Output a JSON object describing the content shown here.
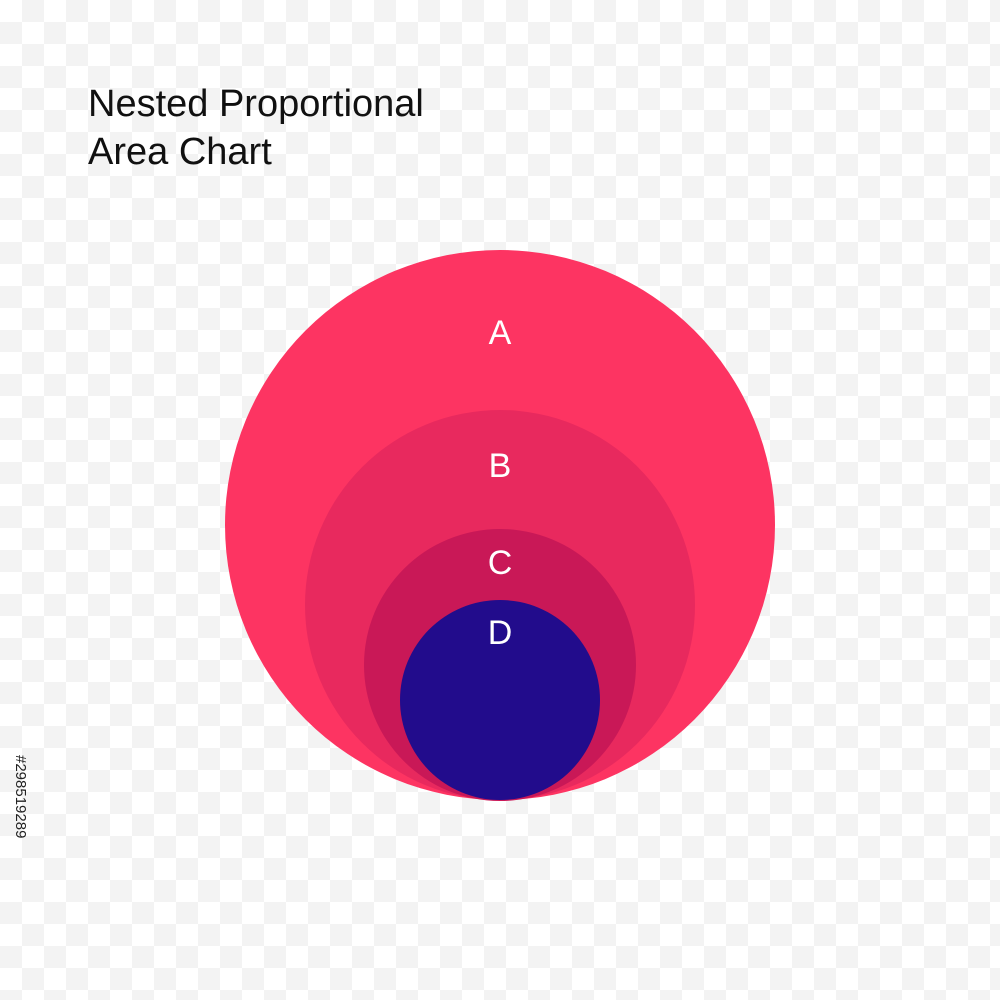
{
  "chart_data": {
    "type": "nested-proportional-area",
    "title_lines": [
      "Nested Proportional",
      "Area Chart"
    ],
    "items": [
      {
        "label": "A",
        "color": "#fd3462"
      },
      {
        "label": "B",
        "color": "#e8295e"
      },
      {
        "label": "C",
        "color": "#c91857"
      },
      {
        "label": "D",
        "color": "#220c8c"
      }
    ]
  },
  "stock_id": "#298519289"
}
